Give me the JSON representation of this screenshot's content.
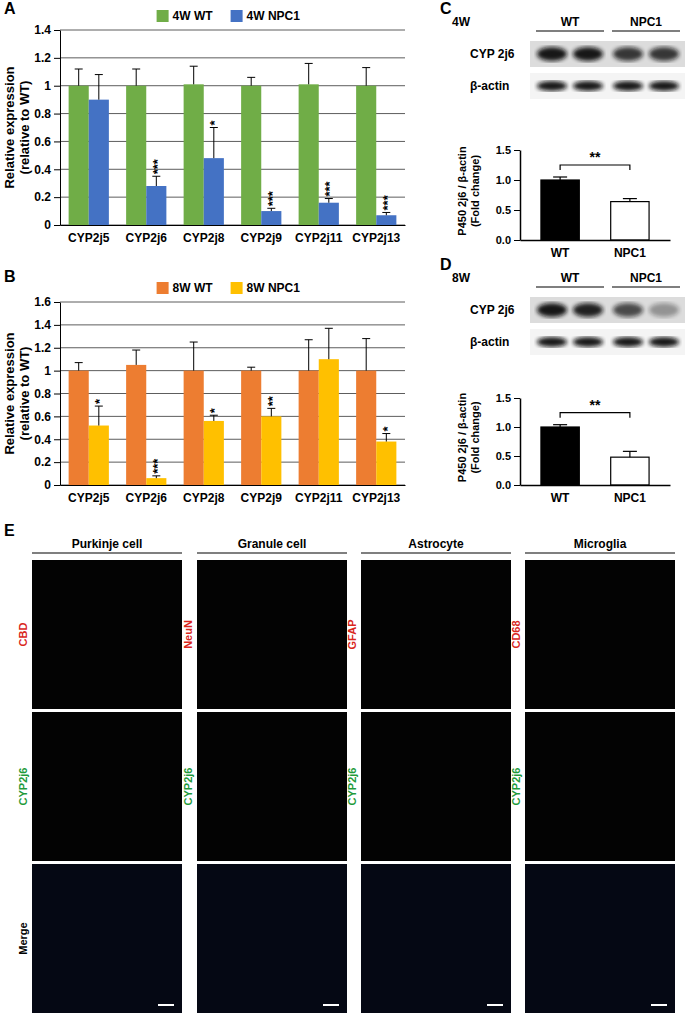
{
  "chart_data": [
    {
      "panel_label": "A",
      "type": "bar",
      "categories": [
        "CYP2j5",
        "CYP2j6",
        "CYP2j8",
        "CYP2j9",
        "CYP2j11",
        "CYP2j13"
      ],
      "y_label": "Relative expression\n(relative to WT)",
      "ylim": [
        0,
        1.4
      ],
      "yticks": [
        0,
        0.2,
        0.4,
        0.6,
        0.8,
        1,
        1.2,
        1.4
      ],
      "grid": true,
      "legend": "top",
      "series": [
        {
          "name": "4W WT",
          "color": "#70ad47",
          "values": [
            1,
            1,
            1.01,
            1,
            1.01,
            1
          ],
          "errors": [
            0.12,
            0.12,
            0.13,
            0.06,
            0.15,
            0.13
          ]
        },
        {
          "name": "4W NPC1",
          "color": "#4472c4",
          "values": [
            0.9,
            0.28,
            0.48,
            0.1,
            0.16,
            0.07
          ],
          "errors": [
            0.18,
            0.07,
            0.22,
            0.02,
            0.03,
            0.02
          ],
          "significance": [
            null,
            "***",
            "*",
            "***",
            "***",
            "***"
          ]
        }
      ]
    },
    {
      "panel_label": "B",
      "type": "bar",
      "categories": [
        "CYP2j5",
        "CYP2j6",
        "CYP2j8",
        "CYP2j9",
        "CYP2j11",
        "CYP2j13"
      ],
      "y_label": "Relative expression\n(relative to WT)",
      "ylim": [
        0,
        1.6
      ],
      "yticks": [
        0,
        0.2,
        0.4,
        0.6,
        0.8,
        1,
        1.2,
        1.4,
        1.6
      ],
      "grid": true,
      "legend": "top",
      "series": [
        {
          "name": "8W WT",
          "color": "#ed7d31",
          "values": [
            1,
            1.05,
            1,
            1,
            1,
            1
          ],
          "errors": [
            0.07,
            0.13,
            0.25,
            0.03,
            0.27,
            0.28
          ]
        },
        {
          "name": "8W NPC1",
          "color": "#ffc000",
          "values": [
            0.52,
            0.06,
            0.56,
            0.6,
            1.1,
            0.38
          ],
          "errors": [
            0.17,
            0.02,
            0.05,
            0.07,
            0.27,
            0.07
          ],
          "significance": [
            "*",
            "***",
            "*",
            "**",
            null,
            "*"
          ]
        }
      ]
    },
    {
      "panel_label": "C",
      "type": "bar",
      "blot": {
        "label": "4W",
        "groups": [
          "WT",
          "NPC1"
        ],
        "rows": [
          "CYP 2j6",
          "β-actin"
        ]
      },
      "categories": [
        "WT",
        "NPC1"
      ],
      "values": [
        1,
        0.64
      ],
      "errors": [
        0.05,
        0.05
      ],
      "colors": [
        "#000000",
        "#ffffff"
      ],
      "y_label": "P450 2j6 / β-actin\n(Fold change)",
      "ylim": [
        0,
        1.5
      ],
      "yticks": [
        {
          "value": 0,
          "label": "0.0"
        },
        {
          "value": 0.5,
          "label": "0.5"
        },
        {
          "value": 1,
          "label": "1.0"
        },
        {
          "value": 1.5,
          "label": "1.5"
        }
      ],
      "significance": "**"
    },
    {
      "panel_label": "D",
      "type": "bar",
      "blot": {
        "label": "8W",
        "groups": [
          "WT",
          "NPC1"
        ],
        "rows": [
          "CYP 2j6",
          "β-actin"
        ]
      },
      "categories": [
        "WT",
        "NPC1"
      ],
      "values": [
        1,
        0.48
      ],
      "errors": [
        0.04,
        0.1
      ],
      "colors": [
        "#000000",
        "#ffffff"
      ],
      "y_label": "P450 2j6 / β-actin\n(Fold change)",
      "ylim": [
        0,
        1.5
      ],
      "yticks": [
        {
          "value": 0,
          "label": "0.0"
        },
        {
          "value": 0.5,
          "label": "0.5"
        },
        {
          "value": 1,
          "label": "1.0"
        },
        {
          "value": 1.5,
          "label": "1.5"
        }
      ],
      "significance": "**"
    }
  ],
  "micrographs": {
    "panel_label": "E",
    "columns": [
      {
        "title": "Purkinje cell",
        "stain": "CBD"
      },
      {
        "title": "Granule cell",
        "stain": "NeuN"
      },
      {
        "title": "Astrocyte",
        "stain": "GFAP"
      },
      {
        "title": "Microglia",
        "stain": "CD68"
      }
    ],
    "stain": "CYP2j6",
    "merge": "Merge"
  }
}
